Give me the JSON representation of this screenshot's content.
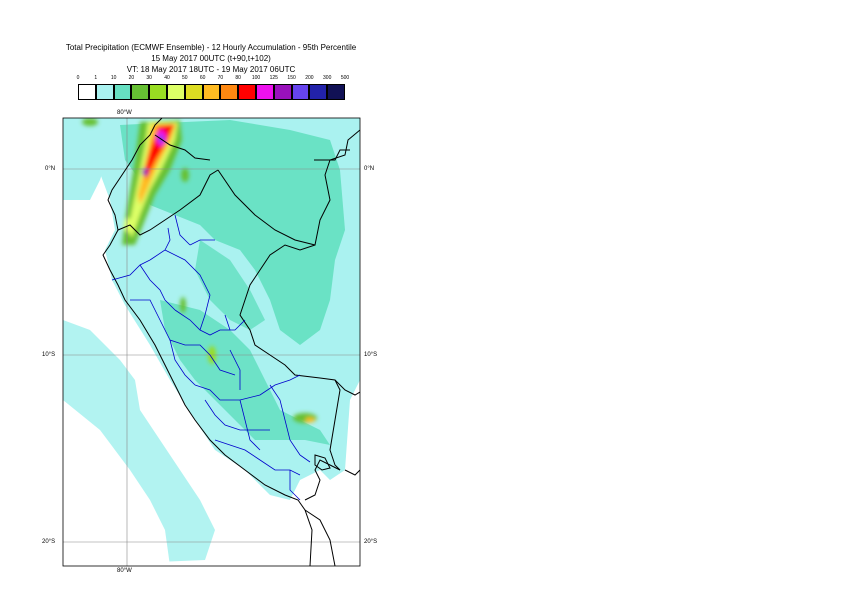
{
  "title": {
    "line1": "Total Precipitation (ECMWF Ensemble) - 12 Hourly Accumulation - 95th Percentile",
    "line2": "15 May 2017 00UTC (t+90,t+102)",
    "line3": "VT: 18 May 2017 18UTC - 19 May 2017 06UTC"
  },
  "legend": {
    "thresholds": [
      "0",
      "1",
      "10",
      "20",
      "30",
      "40",
      "50",
      "60",
      "70",
      "80",
      "100",
      "125",
      "150",
      "200",
      "300",
      "500"
    ],
    "colors": [
      "#ffffff",
      "#aaf2f0",
      "#66e0c2",
      "#66c033",
      "#99dd22",
      "#ddff66",
      "#dddd22",
      "#ffbb22",
      "#ff8811",
      "#ff0000",
      "#ee11ee",
      "#9911bb",
      "#6644ee",
      "#2222aa",
      "#111155"
    ]
  },
  "axes": {
    "top_lon": "80°W",
    "bottom_lon": "80°W",
    "lat_labels": [
      "0°N",
      "10°S",
      "20°S"
    ]
  },
  "colors": {
    "ocean": "#ffffff",
    "light_precip": "#aaf2f0",
    "mid_precip": "#66e0c2",
    "border": "#000000",
    "region_border": "#0000cc",
    "grid": "#888888"
  }
}
